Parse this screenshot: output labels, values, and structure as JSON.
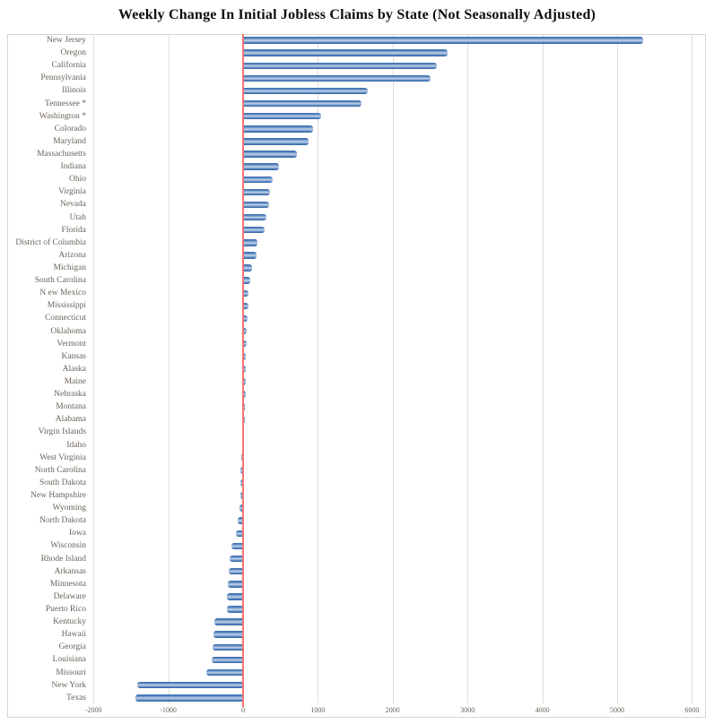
{
  "title": "Weekly Change In Initial Jobless Claims by State (Not Seasonally Adjusted)",
  "chart_data": {
    "type": "bar",
    "orientation": "horizontal",
    "title": "Weekly Change In Initial Jobless Claims by State (Not Seasonally Adjusted)",
    "xlabel": "",
    "ylabel": "",
    "xlim": [
      -2000,
      6000
    ],
    "grid": "vertical-light-gray",
    "legend": "none",
    "zero_line": true,
    "categories": [
      "New Jersey",
      "Oregon",
      "California",
      "Pennsylvania",
      "Illinois",
      "Tennessee *",
      "Washington *",
      "Colorado",
      "Maryland",
      "Massachusetts",
      "Indiana",
      "Ohio",
      "Virginia",
      "Nevada",
      "Utah",
      "Florida",
      "District of Columbia",
      "Arizona",
      "Michigan",
      "South Carolina",
      "N ew Mexico",
      "Mississippi",
      "Connecticut",
      "Oklahoma",
      "Vermont",
      "Kansas",
      "Alaska",
      "Maine",
      "Nebraska",
      "Montana",
      "Alabama",
      "Virgin Islands",
      "Idaho",
      "West Virginia",
      "North Carolina",
      "South Dakota",
      "New Hampshire",
      "Wyoming",
      "North Dakota",
      "Iowa",
      "Wisconsin",
      "Rhode Island",
      "Arkansas",
      "Minnesota",
      "Delaware",
      "Puerto Rico",
      "Kentucky",
      "Hawaii",
      "Georgia",
      "Louisiana",
      "Missouri",
      "New York",
      "Texas"
    ],
    "values": [
      5350,
      2730,
      2590,
      2500,
      1670,
      1580,
      1040,
      930,
      880,
      720,
      480,
      400,
      355,
      345,
      310,
      290,
      190,
      185,
      120,
      90,
      75,
      70,
      55,
      45,
      42,
      38,
      35,
      32,
      30,
      25,
      18,
      5,
      -5,
      -20,
      -30,
      -35,
      -40,
      -45,
      -70,
      -95,
      -150,
      -180,
      -190,
      -205,
      -210,
      -220,
      -380,
      -400,
      -410,
      -425,
      -490,
      -1410,
      -1440
    ],
    "x_ticks": [
      {
        "label": "-2000",
        "value": -2000
      },
      {
        "label": "-1000",
        "value": -1000
      },
      {
        "label": "0",
        "value": 0
      },
      {
        "label": "1000",
        "value": 1000
      },
      {
        "label": "2000",
        "value": 2000
      },
      {
        "label": "3000",
        "value": 3000
      },
      {
        "label": "4000",
        "value": 4000
      },
      {
        "label": "5000",
        "value": 5000
      },
      {
        "label": "6000",
        "value": 6000
      }
    ],
    "colors": {
      "bar": "#4f81bd",
      "bar_edge": "#315c9e",
      "zero_line": "#f87272",
      "gridline": "#dcdcdc",
      "labels": "#6b6259",
      "title": "#0d0d0d",
      "background": "#ffffff"
    }
  }
}
